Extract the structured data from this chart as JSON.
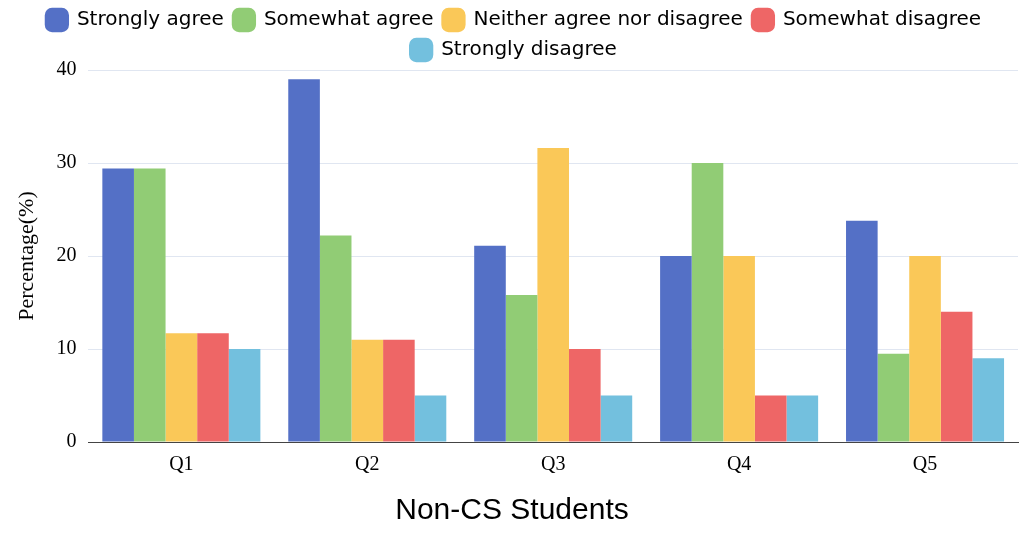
{
  "chart_data": {
    "type": "bar",
    "title": "Non-CS Students",
    "ylabel": "Percentage(%)",
    "categories": [
      "Q1",
      "Q2",
      "Q3",
      "Q4",
      "Q5"
    ],
    "series": [
      {
        "name": "Strongly agree",
        "color": "#5470c6",
        "values": [
          29.4,
          39,
          21.1,
          20,
          23.8
        ]
      },
      {
        "name": "Somewhat agree",
        "color": "#91cc75",
        "values": [
          29.4,
          22.2,
          15.8,
          30,
          9.5
        ]
      },
      {
        "name": "Neither agree nor disagree",
        "color": "#fac858",
        "values": [
          11.7,
          11,
          31.6,
          20,
          20
        ]
      },
      {
        "name": "Somewhat disagree",
        "color": "#ee6666",
        "values": [
          11.7,
          11,
          10,
          5,
          14
        ]
      },
      {
        "name": "Strongly disagree",
        "color": "#73c0de",
        "values": [
          10,
          5,
          5,
          5,
          9
        ]
      }
    ],
    "ylim": [
      0,
      40
    ],
    "yticks": [
      0,
      10,
      20,
      30,
      40
    ],
    "grid": "y",
    "legend": "top"
  }
}
